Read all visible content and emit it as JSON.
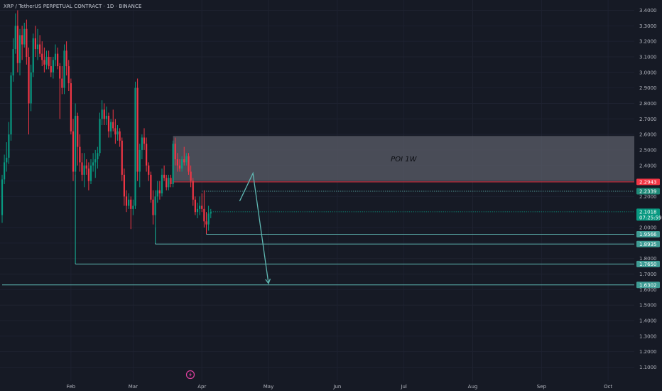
{
  "header": {
    "symbol": "XRP / TetherUS PERPETUAL CONTRACT",
    "interval": "1D",
    "exchange": "BINANCE"
  },
  "colors": {
    "background": "#161a25",
    "up": "#089981",
    "down": "#f23645",
    "level_line": "#5fb8b3",
    "zone_fill": "#5b5e68",
    "grid": "#1e2230",
    "axis_text": "#b2b5be"
  },
  "chart_data": {
    "type": "candlestick",
    "title": "",
    "y_ticks": [
      3.4,
      3.3,
      3.2,
      3.1,
      3.0,
      2.9,
      2.8,
      2.7,
      2.6,
      2.5,
      2.4,
      2.3,
      2.2,
      2.0,
      1.9,
      1.8,
      1.7,
      1.6,
      1.5,
      1.4,
      1.3,
      1.2,
      1.1
    ],
    "y_tick_labels": [
      "3.4000",
      "3.3000",
      "3.2000",
      "3.1000",
      "3.0000",
      "2.9000",
      "2.8000",
      "2.7000",
      "2.6000",
      "2.5000",
      "2.4000",
      "2.3000",
      "2.2000",
      "2.0000",
      "1.9000",
      "1.8000",
      "1.7000",
      "1.6000",
      "1.5000",
      "1.4000",
      "1.3000",
      "1.2000",
      "1.1000"
    ],
    "ylim": [
      1.05,
      3.43
    ],
    "x_axis": {
      "start": "2025-01-01",
      "end": "2025-10-10",
      "ticks": [
        {
          "date": "2025-02-01",
          "label": "Feb"
        },
        {
          "date": "2025-03-01",
          "label": "Mar"
        },
        {
          "date": "2025-04-01",
          "label": "Apr"
        },
        {
          "date": "2025-05-01",
          "label": "May"
        },
        {
          "date": "2025-06-01",
          "label": "Jun"
        },
        {
          "date": "2025-07-01",
          "label": "Jul"
        },
        {
          "date": "2025-08-01",
          "label": "Aug"
        },
        {
          "date": "2025-09-01",
          "label": "Sep"
        },
        {
          "date": "2025-10-01",
          "label": "Oct"
        }
      ]
    },
    "candles": [
      {
        "date": "2025-01-01",
        "o": 2.08,
        "h": 2.34,
        "l": 2.03,
        "c": 2.31
      },
      {
        "date": "2025-01-02",
        "o": 2.31,
        "h": 2.47,
        "l": 2.28,
        "c": 2.42
      },
      {
        "date": "2025-01-03",
        "o": 2.42,
        "h": 2.55,
        "l": 2.36,
        "c": 2.45
      },
      {
        "date": "2025-01-04",
        "o": 2.45,
        "h": 2.68,
        "l": 2.41,
        "c": 2.6
      },
      {
        "date": "2025-01-05",
        "o": 2.6,
        "h": 3.0,
        "l": 2.56,
        "c": 2.98
      },
      {
        "date": "2025-01-06",
        "o": 2.98,
        "h": 3.22,
        "l": 2.94,
        "c": 3.15
      },
      {
        "date": "2025-01-07",
        "o": 3.15,
        "h": 3.38,
        "l": 3.12,
        "c": 3.3
      },
      {
        "date": "2025-01-08",
        "o": 3.3,
        "h": 3.4,
        "l": 3.0,
        "c": 3.06
      },
      {
        "date": "2025-01-09",
        "o": 3.06,
        "h": 3.28,
        "l": 2.98,
        "c": 3.24
      },
      {
        "date": "2025-01-10",
        "o": 3.24,
        "h": 3.3,
        "l": 3.08,
        "c": 3.18
      },
      {
        "date": "2025-01-11",
        "o": 3.18,
        "h": 3.32,
        "l": 3.16,
        "c": 3.28
      },
      {
        "date": "2025-01-12",
        "o": 3.28,
        "h": 3.34,
        "l": 3.05,
        "c": 3.1
      },
      {
        "date": "2025-01-13",
        "o": 3.1,
        "h": 3.16,
        "l": 2.6,
        "c": 2.8
      },
      {
        "date": "2025-01-14",
        "o": 2.8,
        "h": 3.05,
        "l": 2.75,
        "c": 3.0
      },
      {
        "date": "2025-01-15",
        "o": 3.0,
        "h": 3.25,
        "l": 2.97,
        "c": 3.22
      },
      {
        "date": "2025-01-16",
        "o": 3.22,
        "h": 3.3,
        "l": 3.1,
        "c": 3.15
      },
      {
        "date": "2025-01-17",
        "o": 3.15,
        "h": 3.28,
        "l": 3.08,
        "c": 3.18
      },
      {
        "date": "2025-01-18",
        "o": 3.18,
        "h": 3.24,
        "l": 3.1,
        "c": 3.12
      },
      {
        "date": "2025-01-19",
        "o": 3.12,
        "h": 3.2,
        "l": 3.04,
        "c": 3.08
      },
      {
        "date": "2025-01-20",
        "o": 3.08,
        "h": 3.16,
        "l": 3.0,
        "c": 3.05
      },
      {
        "date": "2025-01-21",
        "o": 3.05,
        "h": 3.14,
        "l": 3.02,
        "c": 3.1
      },
      {
        "date": "2025-01-22",
        "o": 3.1,
        "h": 3.14,
        "l": 3.02,
        "c": 3.04
      },
      {
        "date": "2025-01-23",
        "o": 3.04,
        "h": 3.1,
        "l": 2.97,
        "c": 3.0
      },
      {
        "date": "2025-01-24",
        "o": 3.0,
        "h": 3.1,
        "l": 2.96,
        "c": 3.08
      },
      {
        "date": "2025-01-25",
        "o": 3.08,
        "h": 3.18,
        "l": 3.04,
        "c": 3.12
      },
      {
        "date": "2025-01-26",
        "o": 3.12,
        "h": 3.16,
        "l": 3.02,
        "c": 3.04
      },
      {
        "date": "2025-01-27",
        "o": 3.04,
        "h": 3.06,
        "l": 2.7,
        "c": 2.96
      },
      {
        "date": "2025-01-28",
        "o": 2.96,
        "h": 3.04,
        "l": 2.86,
        "c": 2.9
      },
      {
        "date": "2025-01-29",
        "o": 2.9,
        "h": 3.18,
        "l": 2.86,
        "c": 3.14
      },
      {
        "date": "2025-01-30",
        "o": 3.14,
        "h": 3.2,
        "l": 2.98,
        "c": 3.04
      },
      {
        "date": "2025-01-31",
        "o": 3.04,
        "h": 3.08,
        "l": 2.88,
        "c": 2.93
      },
      {
        "date": "2025-02-01",
        "o": 2.93,
        "h": 2.96,
        "l": 2.6,
        "c": 2.62
      },
      {
        "date": "2025-02-02",
        "o": 2.62,
        "h": 2.7,
        "l": 2.3,
        "c": 2.36
      },
      {
        "date": "2025-02-03",
        "o": 2.36,
        "h": 2.8,
        "l": 1.77,
        "c": 2.72
      },
      {
        "date": "2025-02-04",
        "o": 2.72,
        "h": 2.74,
        "l": 2.4,
        "c": 2.52
      },
      {
        "date": "2025-02-05",
        "o": 2.52,
        "h": 2.6,
        "l": 2.36,
        "c": 2.42
      },
      {
        "date": "2025-02-06",
        "o": 2.42,
        "h": 2.48,
        "l": 2.3,
        "c": 2.34
      },
      {
        "date": "2025-02-07",
        "o": 2.34,
        "h": 2.48,
        "l": 2.26,
        "c": 2.4
      },
      {
        "date": "2025-02-08",
        "o": 2.4,
        "h": 2.44,
        "l": 2.34,
        "c": 2.38
      },
      {
        "date": "2025-02-09",
        "o": 2.38,
        "h": 2.42,
        "l": 2.24,
        "c": 2.3
      },
      {
        "date": "2025-02-10",
        "o": 2.3,
        "h": 2.44,
        "l": 2.28,
        "c": 2.4
      },
      {
        "date": "2025-02-11",
        "o": 2.4,
        "h": 2.48,
        "l": 2.36,
        "c": 2.42
      },
      {
        "date": "2025-02-12",
        "o": 2.42,
        "h": 2.5,
        "l": 2.32,
        "c": 2.44
      },
      {
        "date": "2025-02-13",
        "o": 2.44,
        "h": 2.52,
        "l": 2.38,
        "c": 2.48
      },
      {
        "date": "2025-02-14",
        "o": 2.48,
        "h": 2.74,
        "l": 2.46,
        "c": 2.7
      },
      {
        "date": "2025-02-15",
        "o": 2.7,
        "h": 2.82,
        "l": 2.66,
        "c": 2.76
      },
      {
        "date": "2025-02-16",
        "o": 2.76,
        "h": 2.8,
        "l": 2.66,
        "c": 2.7
      },
      {
        "date": "2025-02-17",
        "o": 2.7,
        "h": 2.78,
        "l": 2.66,
        "c": 2.72
      },
      {
        "date": "2025-02-18",
        "o": 2.72,
        "h": 2.74,
        "l": 2.58,
        "c": 2.62
      },
      {
        "date": "2025-02-19",
        "o": 2.62,
        "h": 2.7,
        "l": 2.58,
        "c": 2.68
      },
      {
        "date": "2025-02-20",
        "o": 2.68,
        "h": 2.76,
        "l": 2.62,
        "c": 2.64
      },
      {
        "date": "2025-02-21",
        "o": 2.64,
        "h": 2.7,
        "l": 2.54,
        "c": 2.6
      },
      {
        "date": "2025-02-22",
        "o": 2.6,
        "h": 2.66,
        "l": 2.56,
        "c": 2.62
      },
      {
        "date": "2025-02-23",
        "o": 2.62,
        "h": 2.64,
        "l": 2.52,
        "c": 2.56
      },
      {
        "date": "2025-02-24",
        "o": 2.56,
        "h": 2.58,
        "l": 2.3,
        "c": 2.34
      },
      {
        "date": "2025-02-25",
        "o": 2.34,
        "h": 2.38,
        "l": 2.14,
        "c": 2.2
      },
      {
        "date": "2025-02-26",
        "o": 2.2,
        "h": 2.24,
        "l": 2.1,
        "c": 2.14
      },
      {
        "date": "2025-02-27",
        "o": 2.14,
        "h": 2.22,
        "l": 2.12,
        "c": 2.18
      },
      {
        "date": "2025-02-28",
        "o": 2.18,
        "h": 2.2,
        "l": 1.99,
        "c": 2.12
      },
      {
        "date": "2025-03-01",
        "o": 2.12,
        "h": 2.18,
        "l": 2.08,
        "c": 2.14
      },
      {
        "date": "2025-03-02",
        "o": 2.14,
        "h": 2.94,
        "l": 2.12,
        "c": 2.9
      },
      {
        "date": "2025-03-03",
        "o": 2.9,
        "h": 2.96,
        "l": 2.3,
        "c": 2.36
      },
      {
        "date": "2025-03-04",
        "o": 2.36,
        "h": 2.54,
        "l": 2.26,
        "c": 2.5
      },
      {
        "date": "2025-03-05",
        "o": 2.5,
        "h": 2.6,
        "l": 2.44,
        "c": 2.58
      },
      {
        "date": "2025-03-06",
        "o": 2.58,
        "h": 2.64,
        "l": 2.5,
        "c": 2.54
      },
      {
        "date": "2025-03-07",
        "o": 2.54,
        "h": 2.58,
        "l": 2.36,
        "c": 2.4
      },
      {
        "date": "2025-03-08",
        "o": 2.4,
        "h": 2.42,
        "l": 2.3,
        "c": 2.34
      },
      {
        "date": "2025-03-09",
        "o": 2.34,
        "h": 2.36,
        "l": 2.16,
        "c": 2.18
      },
      {
        "date": "2025-03-10",
        "o": 2.18,
        "h": 2.24,
        "l": 2.02,
        "c": 2.08
      },
      {
        "date": "2025-03-11",
        "o": 2.08,
        "h": 2.24,
        "l": 1.9,
        "c": 2.2
      },
      {
        "date": "2025-03-12",
        "o": 2.2,
        "h": 2.3,
        "l": 2.16,
        "c": 2.24
      },
      {
        "date": "2025-03-13",
        "o": 2.24,
        "h": 2.3,
        "l": 2.18,
        "c": 2.22
      },
      {
        "date": "2025-03-14",
        "o": 2.22,
        "h": 2.38,
        "l": 2.2,
        "c": 2.34
      },
      {
        "date": "2025-03-15",
        "o": 2.34,
        "h": 2.4,
        "l": 2.3,
        "c": 2.32
      },
      {
        "date": "2025-03-16",
        "o": 2.32,
        "h": 2.34,
        "l": 2.24,
        "c": 2.26
      },
      {
        "date": "2025-03-17",
        "o": 2.26,
        "h": 2.34,
        "l": 2.24,
        "c": 2.32
      },
      {
        "date": "2025-03-18",
        "o": 2.32,
        "h": 2.34,
        "l": 2.26,
        "c": 2.28
      },
      {
        "date": "2025-03-19",
        "o": 2.28,
        "h": 2.56,
        "l": 2.26,
        "c": 2.54
      },
      {
        "date": "2025-03-20",
        "o": 2.54,
        "h": 2.58,
        "l": 2.4,
        "c": 2.44
      },
      {
        "date": "2025-03-21",
        "o": 2.44,
        "h": 2.48,
        "l": 2.36,
        "c": 2.4
      },
      {
        "date": "2025-03-22",
        "o": 2.4,
        "h": 2.44,
        "l": 2.36,
        "c": 2.38
      },
      {
        "date": "2025-03-23",
        "o": 2.38,
        "h": 2.46,
        "l": 2.36,
        "c": 2.44
      },
      {
        "date": "2025-03-24",
        "o": 2.44,
        "h": 2.52,
        "l": 2.4,
        "c": 2.42
      },
      {
        "date": "2025-03-25",
        "o": 2.42,
        "h": 2.48,
        "l": 2.4,
        "c": 2.46
      },
      {
        "date": "2025-03-26",
        "o": 2.46,
        "h": 2.48,
        "l": 2.34,
        "c": 2.36
      },
      {
        "date": "2025-03-27",
        "o": 2.36,
        "h": 2.4,
        "l": 2.26,
        "c": 2.3
      },
      {
        "date": "2025-03-28",
        "o": 2.3,
        "h": 2.32,
        "l": 2.14,
        "c": 2.18
      },
      {
        "date": "2025-03-29",
        "o": 2.18,
        "h": 2.2,
        "l": 2.08,
        "c": 2.1
      },
      {
        "date": "2025-03-30",
        "o": 2.1,
        "h": 2.16,
        "l": 2.06,
        "c": 2.12
      },
      {
        "date": "2025-03-31",
        "o": 2.12,
        "h": 2.2,
        "l": 2.08,
        "c": 2.14
      },
      {
        "date": "2025-04-01",
        "o": 2.14,
        "h": 2.22,
        "l": 2.1,
        "c": 2.12
      },
      {
        "date": "2025-04-02",
        "o": 2.12,
        "h": 2.24,
        "l": 2.0,
        "c": 2.04
      },
      {
        "date": "2025-04-03",
        "o": 2.04,
        "h": 2.1,
        "l": 1.96,
        "c": 2.02
      },
      {
        "date": "2025-04-04",
        "o": 2.02,
        "h": 2.14,
        "l": 1.98,
        "c": 2.09
      },
      {
        "date": "2025-04-05",
        "o": 2.09,
        "h": 2.12,
        "l": 2.06,
        "c": 2.1
      }
    ],
    "zone": {
      "label": "POI 1W",
      "from": "2025-03-19",
      "to": "2025-10-10",
      "top": 2.59,
      "bottom": 2.3
    },
    "levels": [
      {
        "value": 2.2943,
        "label": "2.2943",
        "style": "solid",
        "color": "#f23645",
        "badge": "#f23645",
        "from": "2025-03-19"
      },
      {
        "value": 2.2339,
        "label": "2.2339",
        "style": "dotted",
        "color": "#5fb8b3",
        "badge": "#1f8a78",
        "from": "2025-04-01"
      },
      {
        "value": 1.9566,
        "label": "1.9566",
        "style": "solid",
        "color": "#5fb8b3",
        "badge": "#3f9d95",
        "from": "2025-04-03",
        "from_price": 2.02
      },
      {
        "value": 1.8935,
        "label": "1.8935",
        "style": "solid",
        "color": "#5fb8b3",
        "badge": "#3f9d95",
        "from": "2025-03-11",
        "from_price": 2.0
      },
      {
        "value": 1.765,
        "label": "1.7650",
        "style": "solid",
        "color": "#5fb8b3",
        "badge": "#3f9d95",
        "from": "2025-02-03",
        "from_price": 2.34
      },
      {
        "value": 1.6302,
        "label": "1.6302",
        "style": "solid",
        "color": "#5fb8b3",
        "badge": "#3f9d95",
        "from": "2025-01-01"
      }
    ],
    "current_price": {
      "value": 2.1018,
      "label": "2.1018",
      "countdown": "07:25:59",
      "color": "#089981"
    },
    "projection": [
      {
        "date": "2025-04-18",
        "price": 2.17
      },
      {
        "date": "2025-04-24",
        "price": 2.35
      },
      {
        "date": "2025-05-01",
        "price": 1.64
      }
    ]
  }
}
